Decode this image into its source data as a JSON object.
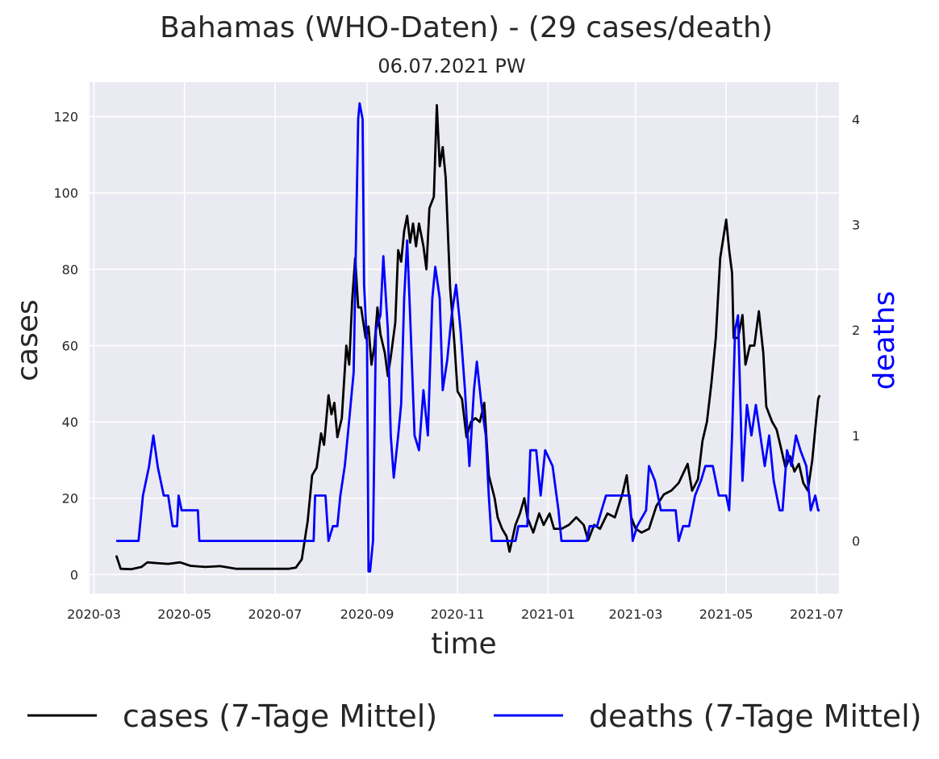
{
  "chart_data": {
    "type": "line",
    "title": "Bahamas (WHO-Daten) - (29 cases/death)",
    "subtitle": "06.07.2021 PW",
    "xlabel": "time",
    "ylabel_left": "cases",
    "ylabel_right": "deaths",
    "xlim": [
      "2020-02-27",
      "2021-07-16"
    ],
    "ylim_left": [
      -5,
      129
    ],
    "ylim_right": [
      -0.5,
      4.35
    ],
    "x_ticks": [
      "2020-03",
      "2020-05",
      "2020-07",
      "2020-09",
      "2020-11",
      "2021-01",
      "2021-03",
      "2021-05",
      "2021-07"
    ],
    "y_ticks_left": [
      0,
      20,
      40,
      60,
      80,
      100,
      120
    ],
    "y_ticks_right": [
      0,
      1,
      2,
      3,
      4
    ],
    "grid": true,
    "legend_position": "bottom",
    "colors": {
      "cases": "#000000",
      "deaths": "#0000ff",
      "plot_background": "#eaeaf2",
      "grid": "#ffffff",
      "text": "#262626"
    },
    "series": [
      {
        "name": "cases (7-Tage Mittel)",
        "axis": "left",
        "points": [
          [
            "2020-03-16",
            5
          ],
          [
            "2020-03-19",
            1.5
          ],
          [
            "2020-03-26",
            1.4
          ],
          [
            "2020-04-02",
            2
          ],
          [
            "2020-04-06",
            3.2
          ],
          [
            "2020-04-12",
            3
          ],
          [
            "2020-04-20",
            2.8
          ],
          [
            "2020-04-28",
            3.2
          ],
          [
            "2020-05-05",
            2.3
          ],
          [
            "2020-05-15",
            2
          ],
          [
            "2020-05-25",
            2.2
          ],
          [
            "2020-06-05",
            1.5
          ],
          [
            "2020-06-20",
            1.5
          ],
          [
            "2020-07-10",
            1.5
          ],
          [
            "2020-07-15",
            1.8
          ],
          [
            "2020-07-19",
            4
          ],
          [
            "2020-07-23",
            14
          ],
          [
            "2020-07-26",
            26
          ],
          [
            "2020-07-29",
            28
          ],
          [
            "2020-08-01",
            37
          ],
          [
            "2020-08-03",
            34
          ],
          [
            "2020-08-06",
            47
          ],
          [
            "2020-08-08",
            42
          ],
          [
            "2020-08-10",
            45
          ],
          [
            "2020-08-12",
            36
          ],
          [
            "2020-08-15",
            41
          ],
          [
            "2020-08-18",
            60
          ],
          [
            "2020-08-20",
            55
          ],
          [
            "2020-08-22",
            72
          ],
          [
            "2020-08-24",
            83
          ],
          [
            "2020-08-26",
            70
          ],
          [
            "2020-08-28",
            70
          ],
          [
            "2020-08-31",
            62
          ],
          [
            "2020-09-02",
            65
          ],
          [
            "2020-09-04",
            55
          ],
          [
            "2020-09-06",
            60
          ],
          [
            "2020-09-08",
            70
          ],
          [
            "2020-09-10",
            63
          ],
          [
            "2020-09-13",
            58
          ],
          [
            "2020-09-15",
            52
          ],
          [
            "2020-09-17",
            57
          ],
          [
            "2020-09-20",
            66
          ],
          [
            "2020-09-22",
            85
          ],
          [
            "2020-09-24",
            82
          ],
          [
            "2020-09-26",
            90
          ],
          [
            "2020-09-28",
            94
          ],
          [
            "2020-09-30",
            87
          ],
          [
            "2020-10-02",
            92
          ],
          [
            "2020-10-04",
            86
          ],
          [
            "2020-10-06",
            92
          ],
          [
            "2020-10-09",
            86
          ],
          [
            "2020-10-11",
            80
          ],
          [
            "2020-10-13",
            96
          ],
          [
            "2020-10-16",
            99
          ],
          [
            "2020-10-18",
            123
          ],
          [
            "2020-10-20",
            107
          ],
          [
            "2020-10-22",
            112
          ],
          [
            "2020-10-24",
            104
          ],
          [
            "2020-10-27",
            75
          ],
          [
            "2020-10-30",
            60
          ],
          [
            "2020-11-01",
            48
          ],
          [
            "2020-11-04",
            46
          ],
          [
            "2020-11-07",
            36
          ],
          [
            "2020-11-10",
            40
          ],
          [
            "2020-11-13",
            41
          ],
          [
            "2020-11-16",
            40
          ],
          [
            "2020-11-19",
            45
          ],
          [
            "2020-11-22",
            26
          ],
          [
            "2020-11-26",
            20
          ],
          [
            "2020-11-28",
            15
          ],
          [
            "2020-12-01",
            12
          ],
          [
            "2020-12-04",
            10
          ],
          [
            "2020-12-06",
            6
          ],
          [
            "2020-12-10",
            13
          ],
          [
            "2020-12-13",
            16
          ],
          [
            "2020-12-16",
            20
          ],
          [
            "2020-12-18",
            15
          ],
          [
            "2020-12-22",
            11
          ],
          [
            "2020-12-26",
            16
          ],
          [
            "2020-12-29",
            13
          ],
          [
            "2021-01-02",
            16
          ],
          [
            "2021-01-05",
            12
          ],
          [
            "2021-01-10",
            12
          ],
          [
            "2021-01-15",
            13
          ],
          [
            "2021-01-20",
            15
          ],
          [
            "2021-01-25",
            13
          ],
          [
            "2021-01-28",
            9
          ],
          [
            "2021-02-01",
            13
          ],
          [
            "2021-02-05",
            12
          ],
          [
            "2021-02-10",
            16
          ],
          [
            "2021-02-15",
            15
          ],
          [
            "2021-02-20",
            21
          ],
          [
            "2021-02-23",
            26
          ],
          [
            "2021-02-26",
            15
          ],
          [
            "2021-03-01",
            12
          ],
          [
            "2021-03-05",
            11
          ],
          [
            "2021-03-10",
            12
          ],
          [
            "2021-03-15",
            18
          ],
          [
            "2021-03-20",
            21
          ],
          [
            "2021-03-25",
            22
          ],
          [
            "2021-03-30",
            24
          ],
          [
            "2021-04-05",
            29
          ],
          [
            "2021-04-08",
            22
          ],
          [
            "2021-04-12",
            25
          ],
          [
            "2021-04-15",
            35
          ],
          [
            "2021-04-18",
            40
          ],
          [
            "2021-04-21",
            50
          ],
          [
            "2021-04-24",
            62
          ],
          [
            "2021-04-27",
            83
          ],
          [
            "2021-04-29",
            88
          ],
          [
            "2021-05-01",
            93
          ],
          [
            "2021-05-03",
            85
          ],
          [
            "2021-05-05",
            79
          ],
          [
            "2021-05-06",
            62
          ],
          [
            "2021-05-09",
            62
          ],
          [
            "2021-05-12",
            68
          ],
          [
            "2021-05-14",
            55
          ],
          [
            "2021-05-17",
            60
          ],
          [
            "2021-05-20",
            60
          ],
          [
            "2021-05-23",
            69
          ],
          [
            "2021-05-26",
            58
          ],
          [
            "2021-05-28",
            44
          ],
          [
            "2021-06-01",
            40
          ],
          [
            "2021-06-04",
            38
          ],
          [
            "2021-06-07",
            33
          ],
          [
            "2021-06-10",
            28
          ],
          [
            "2021-06-13",
            31
          ],
          [
            "2021-06-16",
            27
          ],
          [
            "2021-06-19",
            29
          ],
          [
            "2021-06-22",
            24
          ],
          [
            "2021-06-25",
            22
          ],
          [
            "2021-06-28",
            30
          ],
          [
            "2021-07-02",
            46
          ],
          [
            "2021-07-03",
            47
          ]
        ]
      },
      {
        "name": "deaths (7-Tage Mittel)",
        "axis": "right",
        "points": [
          [
            "2020-03-16",
            0
          ],
          [
            "2020-03-31",
            0
          ],
          [
            "2020-04-03",
            0.43
          ],
          [
            "2020-04-07",
            0.7
          ],
          [
            "2020-04-10",
            1
          ],
          [
            "2020-04-13",
            0.7
          ],
          [
            "2020-04-17",
            0.43
          ],
          [
            "2020-04-20",
            0.43
          ],
          [
            "2020-04-23",
            0.14
          ],
          [
            "2020-04-26",
            0.14
          ],
          [
            "2020-04-27",
            0.43
          ],
          [
            "2020-04-29",
            0.29
          ],
          [
            "2020-05-10",
            0.29
          ],
          [
            "2020-05-11",
            0
          ],
          [
            "2020-07-27",
            0
          ],
          [
            "2020-07-28",
            0.43
          ],
          [
            "2020-08-04",
            0.43
          ],
          [
            "2020-08-06",
            0
          ],
          [
            "2020-08-09",
            0.14
          ],
          [
            "2020-08-12",
            0.14
          ],
          [
            "2020-08-14",
            0.43
          ],
          [
            "2020-08-17",
            0.71
          ],
          [
            "2020-08-19",
            1
          ],
          [
            "2020-08-23",
            1.6
          ],
          [
            "2020-08-26",
            4
          ],
          [
            "2020-08-27",
            4.15
          ],
          [
            "2020-08-29",
            4
          ],
          [
            "2020-08-30",
            2.43
          ],
          [
            "2020-09-01",
            1.86
          ],
          [
            "2020-09-02",
            -0.29
          ],
          [
            "2020-09-03",
            -0.29
          ],
          [
            "2020-09-05",
            0
          ],
          [
            "2020-09-07",
            2.0
          ],
          [
            "2020-09-10",
            2.14
          ],
          [
            "2020-09-12",
            2.7
          ],
          [
            "2020-09-15",
            2.0
          ],
          [
            "2020-09-17",
            1.0
          ],
          [
            "2020-09-19",
            0.6
          ],
          [
            "2020-09-22",
            1.0
          ],
          [
            "2020-09-24",
            1.3
          ],
          [
            "2020-09-26",
            2.3
          ],
          [
            "2020-09-28",
            2.85
          ],
          [
            "2020-09-30",
            2.14
          ],
          [
            "2020-10-03",
            1.0
          ],
          [
            "2020-10-06",
            0.86
          ],
          [
            "2020-10-09",
            1.43
          ],
          [
            "2020-10-12",
            1.0
          ],
          [
            "2020-10-15",
            2.3
          ],
          [
            "2020-10-17",
            2.6
          ],
          [
            "2020-10-20",
            2.3
          ],
          [
            "2020-10-22",
            1.43
          ],
          [
            "2020-10-25",
            1.71
          ],
          [
            "2020-10-28",
            2.14
          ],
          [
            "2020-10-31",
            2.43
          ],
          [
            "2020-11-03",
            2.0
          ],
          [
            "2020-11-06",
            1.43
          ],
          [
            "2020-11-09",
            0.71
          ],
          [
            "2020-11-12",
            1.43
          ],
          [
            "2020-11-14",
            1.7
          ],
          [
            "2020-11-17",
            1.3
          ],
          [
            "2020-11-20",
            1.0
          ],
          [
            "2020-11-22",
            0.43
          ],
          [
            "2020-11-24",
            0
          ],
          [
            "2020-12-10",
            0
          ],
          [
            "2020-12-12",
            0.14
          ],
          [
            "2020-12-18",
            0.14
          ],
          [
            "2020-12-20",
            0.86
          ],
          [
            "2020-12-24",
            0.86
          ],
          [
            "2020-12-27",
            0.43
          ],
          [
            "2020-12-30",
            0.86
          ],
          [
            "2021-01-04",
            0.71
          ],
          [
            "2021-01-08",
            0.29
          ],
          [
            "2021-01-10",
            0
          ],
          [
            "2021-01-27",
            0
          ],
          [
            "2021-01-29",
            0.14
          ],
          [
            "2021-02-03",
            0.14
          ],
          [
            "2021-02-06",
            0.29
          ],
          [
            "2021-02-09",
            0.43
          ],
          [
            "2021-02-25",
            0.43
          ],
          [
            "2021-02-27",
            0
          ],
          [
            "2021-03-02",
            0.14
          ],
          [
            "2021-03-08",
            0.29
          ],
          [
            "2021-03-10",
            0.71
          ],
          [
            "2021-03-14",
            0.57
          ],
          [
            "2021-03-18",
            0.29
          ],
          [
            "2021-03-28",
            0.29
          ],
          [
            "2021-03-30",
            0
          ],
          [
            "2021-04-02",
            0.14
          ],
          [
            "2021-04-06",
            0.14
          ],
          [
            "2021-04-10",
            0.43
          ],
          [
            "2021-04-14",
            0.57
          ],
          [
            "2021-04-17",
            0.71
          ],
          [
            "2021-04-22",
            0.71
          ],
          [
            "2021-04-26",
            0.43
          ],
          [
            "2021-05-01",
            0.43
          ],
          [
            "2021-05-03",
            0.29
          ],
          [
            "2021-05-05",
            1.0
          ],
          [
            "2021-05-07",
            2.0
          ],
          [
            "2021-05-09",
            2.14
          ],
          [
            "2021-05-12",
            0.57
          ],
          [
            "2021-05-15",
            1.29
          ],
          [
            "2021-05-18",
            1.0
          ],
          [
            "2021-05-21",
            1.29
          ],
          [
            "2021-05-24",
            1.0
          ],
          [
            "2021-05-27",
            0.71
          ],
          [
            "2021-05-30",
            1.0
          ],
          [
            "2021-06-02",
            0.57
          ],
          [
            "2021-06-06",
            0.29
          ],
          [
            "2021-06-08",
            0.29
          ],
          [
            "2021-06-11",
            0.86
          ],
          [
            "2021-06-14",
            0.71
          ],
          [
            "2021-06-17",
            1.0
          ],
          [
            "2021-06-20",
            0.86
          ],
          [
            "2021-06-24",
            0.71
          ],
          [
            "2021-06-27",
            0.29
          ],
          [
            "2021-06-30",
            0.43
          ],
          [
            "2021-07-02",
            0.29
          ],
          [
            "2021-07-03",
            0.29
          ]
        ]
      }
    ]
  }
}
